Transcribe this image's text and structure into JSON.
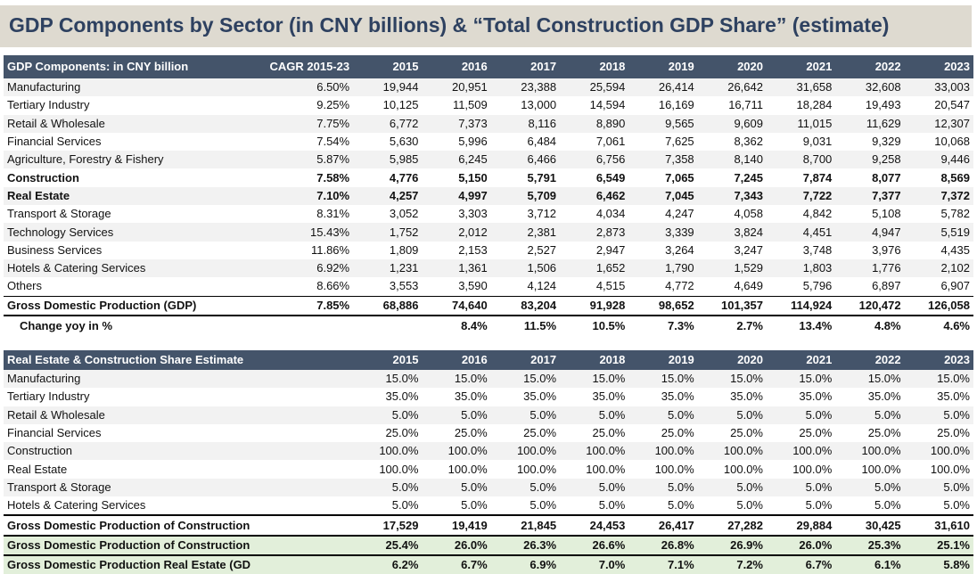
{
  "title": "GDP Components by Sector (in CNY billions) & “Total Construction GDP Share” (estimate)",
  "years": [
    "2015",
    "2016",
    "2017",
    "2018",
    "2019",
    "2020",
    "2021",
    "2022",
    "2023"
  ],
  "table1": {
    "header_label": "GDP Components: in CNY billion",
    "header_cagr": "CAGR 2015-23",
    "rows": [
      {
        "label": "Manufacturing",
        "cagr": "6.50%",
        "values": [
          "19,944",
          "20,951",
          "23,388",
          "25,594",
          "26,414",
          "26,642",
          "31,658",
          "32,608",
          "33,003"
        ],
        "bold": false
      },
      {
        "label": "Tertiary Industry",
        "cagr": "9.25%",
        "values": [
          "10,125",
          "11,509",
          "13,000",
          "14,594",
          "16,169",
          "16,711",
          "18,284",
          "19,493",
          "20,547"
        ],
        "bold": false
      },
      {
        "label": "Retail & Wholesale",
        "cagr": "7.75%",
        "values": [
          "6,772",
          "7,373",
          "8,116",
          "8,890",
          "9,565",
          "9,609",
          "11,015",
          "11,629",
          "12,307"
        ],
        "bold": false
      },
      {
        "label": "Financial Services",
        "cagr": "7.54%",
        "values": [
          "5,630",
          "5,996",
          "6,484",
          "7,061",
          "7,625",
          "8,362",
          "9,031",
          "9,329",
          "10,068"
        ],
        "bold": false
      },
      {
        "label": "Agriculture, Forestry & Fishery",
        "cagr": "5.87%",
        "values": [
          "5,985",
          "6,245",
          "6,466",
          "6,756",
          "7,358",
          "8,140",
          "8,700",
          "9,258",
          "9,446"
        ],
        "bold": false
      },
      {
        "label": "Construction",
        "cagr": "7.58%",
        "values": [
          "4,776",
          "5,150",
          "5,791",
          "6,549",
          "7,065",
          "7,245",
          "7,874",
          "8,077",
          "8,569"
        ],
        "bold": true
      },
      {
        "label": "Real Estate",
        "cagr": "7.10%",
        "values": [
          "4,257",
          "4,997",
          "5,709",
          "6,462",
          "7,045",
          "7,343",
          "7,722",
          "7,377",
          "7,372"
        ],
        "bold": true
      },
      {
        "label": "Transport & Storage",
        "cagr": "8.31%",
        "values": [
          "3,052",
          "3,303",
          "3,712",
          "4,034",
          "4,247",
          "4,058",
          "4,842",
          "5,108",
          "5,782"
        ],
        "bold": false
      },
      {
        "label": "Technology Services",
        "cagr": "15.43%",
        "values": [
          "1,752",
          "2,012",
          "2,381",
          "2,873",
          "3,339",
          "3,824",
          "4,451",
          "4,947",
          "5,519"
        ],
        "bold": false
      },
      {
        "label": "Business Services",
        "cagr": "11.86%",
        "values": [
          "1,809",
          "2,153",
          "2,527",
          "2,947",
          "3,264",
          "3,247",
          "3,748",
          "3,976",
          "4,435"
        ],
        "bold": false
      },
      {
        "label": "Hotels & Catering Services",
        "cagr": "6.92%",
        "values": [
          "1,231",
          "1,361",
          "1,506",
          "1,652",
          "1,790",
          "1,529",
          "1,803",
          "1,776",
          "2,102"
        ],
        "bold": false
      },
      {
        "label": "Others",
        "cagr": "8.66%",
        "values": [
          "3,553",
          "3,590",
          "4,124",
          "4,515",
          "4,772",
          "4,649",
          "5,796",
          "6,897",
          "6,907"
        ],
        "bold": false
      }
    ],
    "total": {
      "label": "Gross Domestic Production (GDP)",
      "cagr": "7.85%",
      "values": [
        "68,886",
        "74,640",
        "83,204",
        "91,928",
        "98,652",
        "101,357",
        "114,924",
        "120,472",
        "126,058"
      ]
    },
    "yoy": {
      "label": "Change yoy in %",
      "values": [
        "",
        "8.4%",
        "11.5%",
        "10.5%",
        "7.3%",
        "2.7%",
        "13.4%",
        "4.8%",
        "4.6%"
      ]
    }
  },
  "table2": {
    "header_label": "Real Estate & Construction Share Estimate",
    "rows": [
      {
        "label": "Manufacturing",
        "values": [
          "15.0%",
          "15.0%",
          "15.0%",
          "15.0%",
          "15.0%",
          "15.0%",
          "15.0%",
          "15.0%",
          "15.0%"
        ]
      },
      {
        "label": "Tertiary Industry",
        "values": [
          "35.0%",
          "35.0%",
          "35.0%",
          "35.0%",
          "35.0%",
          "35.0%",
          "35.0%",
          "35.0%",
          "35.0%"
        ]
      },
      {
        "label": "Retail & Wholesale",
        "values": [
          "5.0%",
          "5.0%",
          "5.0%",
          "5.0%",
          "5.0%",
          "5.0%",
          "5.0%",
          "5.0%",
          "5.0%"
        ]
      },
      {
        "label": "Financial Services",
        "values": [
          "25.0%",
          "25.0%",
          "25.0%",
          "25.0%",
          "25.0%",
          "25.0%",
          "25.0%",
          "25.0%",
          "25.0%"
        ]
      },
      {
        "label": "Construction",
        "values": [
          "100.0%",
          "100.0%",
          "100.0%",
          "100.0%",
          "100.0%",
          "100.0%",
          "100.0%",
          "100.0%",
          "100.0%"
        ]
      },
      {
        "label": "Real Estate",
        "values": [
          "100.0%",
          "100.0%",
          "100.0%",
          "100.0%",
          "100.0%",
          "100.0%",
          "100.0%",
          "100.0%",
          "100.0%"
        ]
      },
      {
        "label": "Transport & Storage",
        "values": [
          "5.0%",
          "5.0%",
          "5.0%",
          "5.0%",
          "5.0%",
          "5.0%",
          "5.0%",
          "5.0%",
          "5.0%"
        ]
      },
      {
        "label": "Hotels & Catering Services",
        "values": [
          "5.0%",
          "5.0%",
          "5.0%",
          "5.0%",
          "5.0%",
          "5.0%",
          "5.0%",
          "5.0%",
          "5.0%"
        ]
      }
    ],
    "total": {
      "label": "Gross Domestic Production of Construction Sector (GDP)",
      "values": [
        "17,529",
        "19,419",
        "21,845",
        "24,453",
        "26,417",
        "27,282",
        "29,884",
        "30,425",
        "31,610"
      ]
    },
    "share_construction": {
      "label": "Gross Domestic Production of Construction Sector (GDP in %)",
      "values": [
        "25.4%",
        "26.0%",
        "26.3%",
        "26.6%",
        "26.8%",
        "26.9%",
        "26.0%",
        "25.3%",
        "25.1%"
      ]
    },
    "share_real_estate": {
      "label": "Gross Domestic Production Real Estate (GDP in %)",
      "values": [
        "6.2%",
        "6.7%",
        "6.9%",
        "7.0%",
        "7.1%",
        "7.2%",
        "6.7%",
        "6.1%",
        "5.8%"
      ]
    }
  }
}
